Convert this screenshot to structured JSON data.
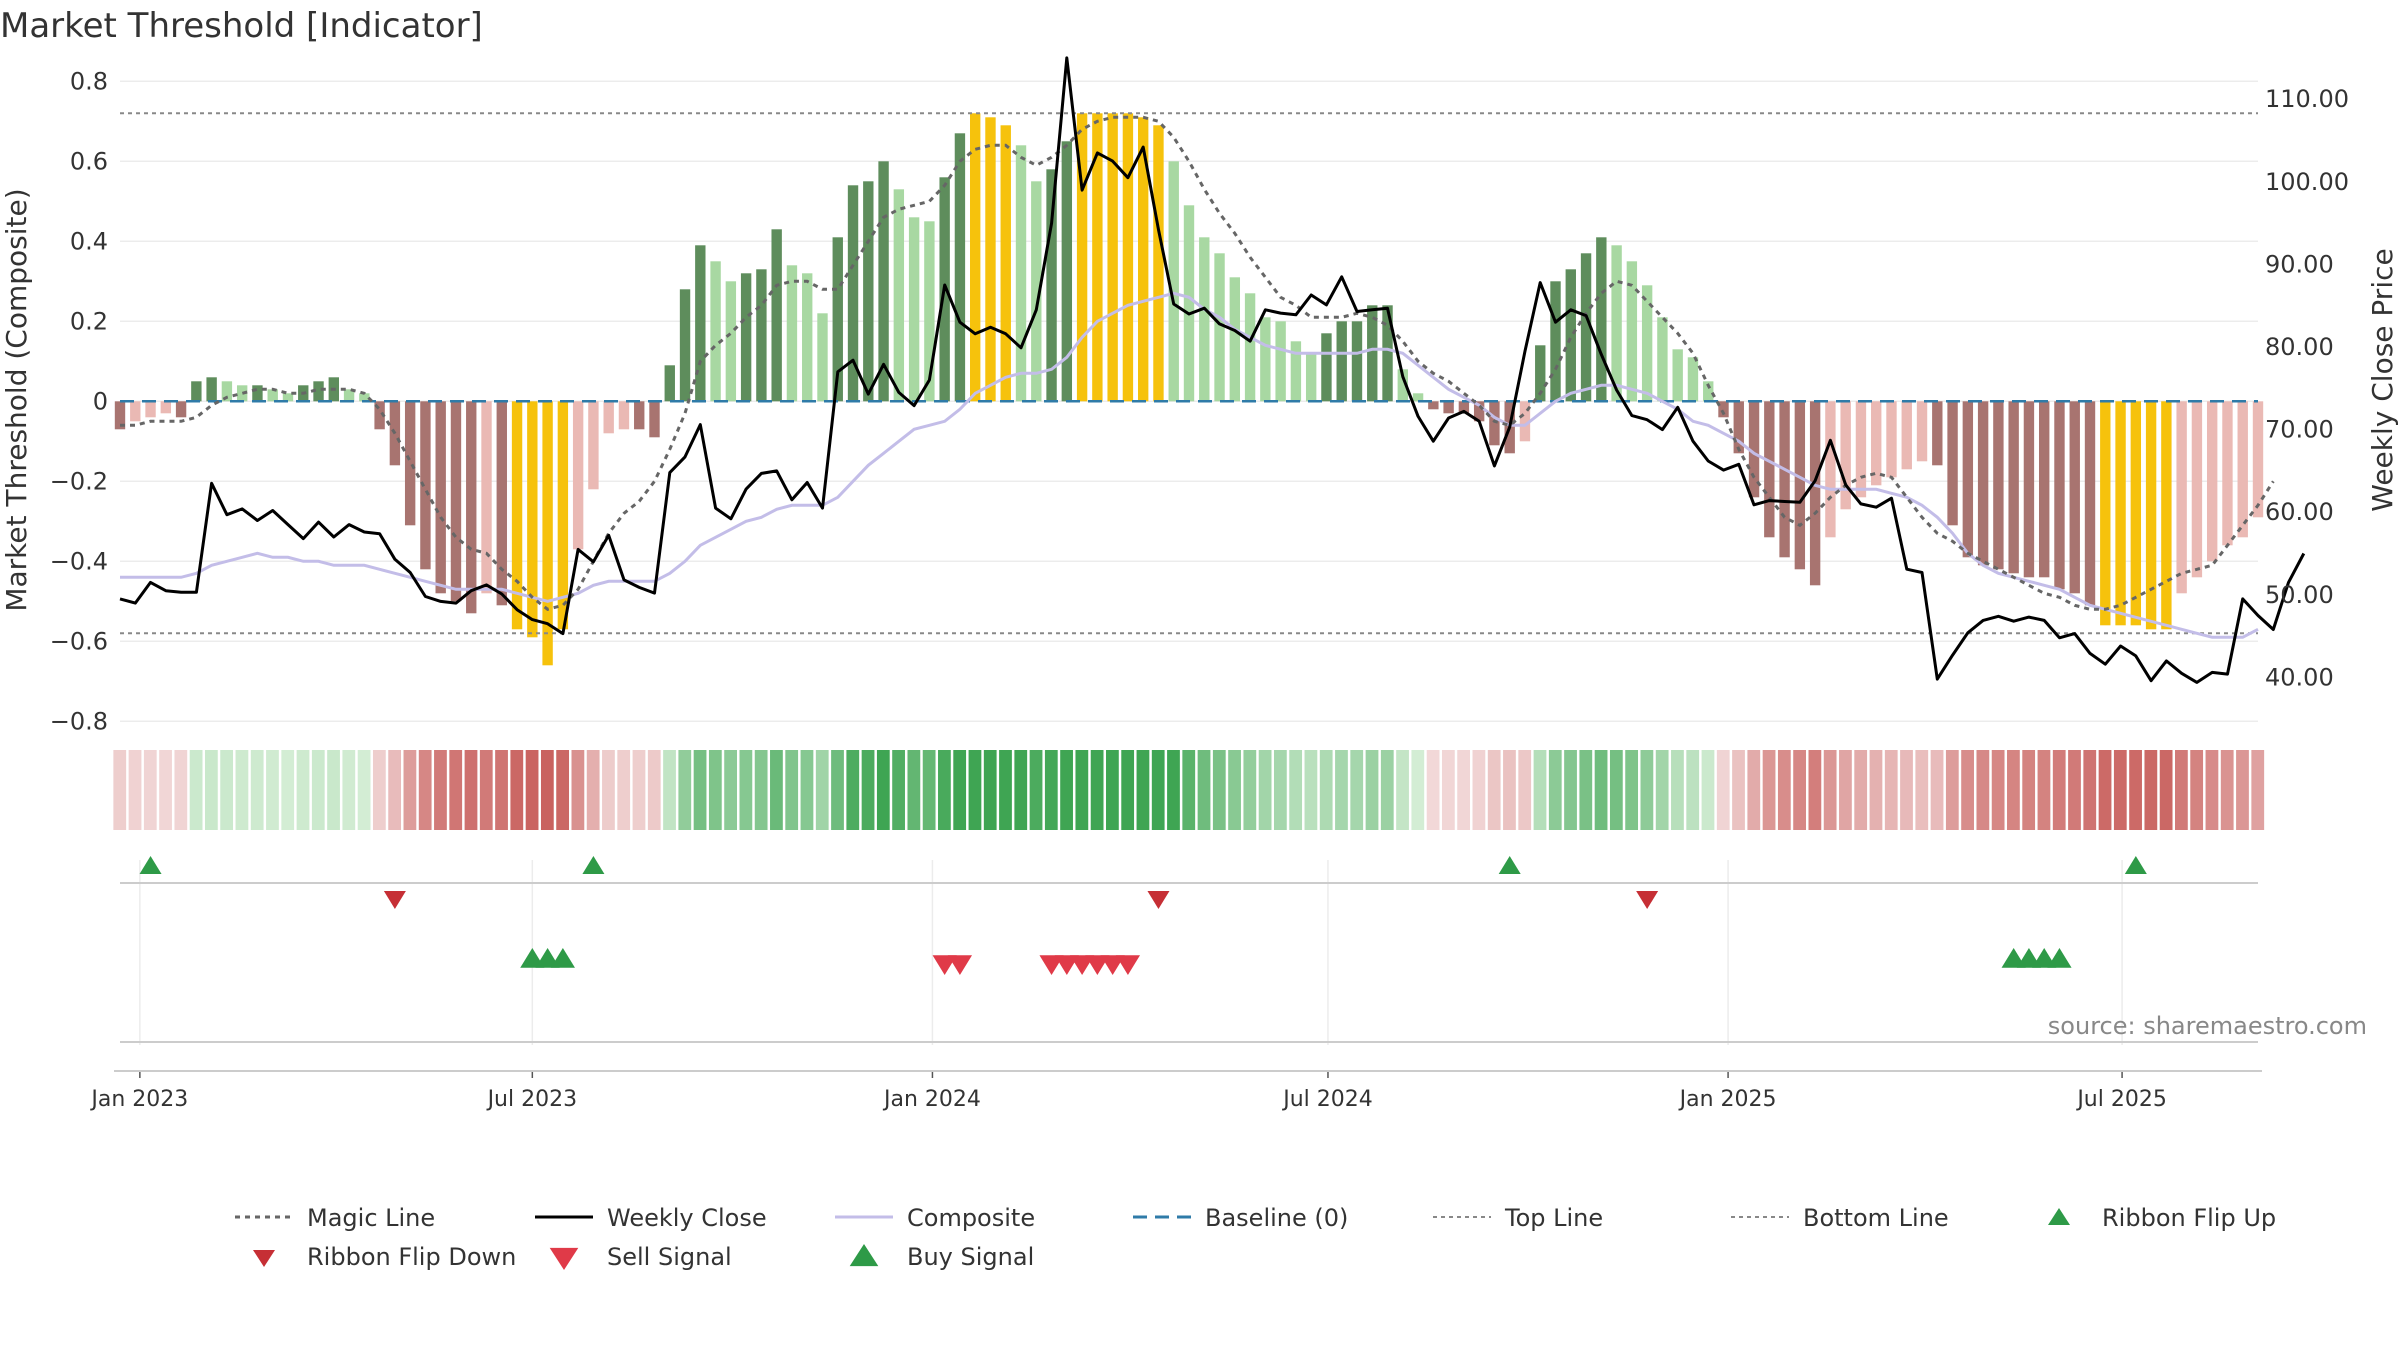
{
  "chart_data": {
    "type": "bar",
    "title": "Market Threshold [Indicator]",
    "ylabel": "Market Threshold (Composite)",
    "y2label": "Weekly Close Price",
    "ylim": [
      -0.8,
      0.8
    ],
    "y2lim": [
      36.0,
      119.0
    ],
    "yticks": [
      "0.8",
      "0.6",
      "0.4",
      "0.2",
      "0",
      "−0.2",
      "−0.4",
      "−0.6",
      "−0.8"
    ],
    "y2ticks": [
      "110.00",
      "100.00",
      "90.00",
      "80.00",
      "70.00",
      "60.00",
      "50.00",
      "40.00"
    ],
    "xticks": [
      "Jan 2023",
      "Jul 2023",
      "Jan 2024",
      "Jul 2024",
      "Jan 2025",
      "Jul 2025"
    ],
    "top_line": 0.72,
    "bottom_line": -0.58,
    "baseline": 0,
    "source": "source: sharemaestro.com",
    "grid": true,
    "legend_position": "bottom",
    "weeks": 141,
    "composite_bars": [
      -0.07,
      -0.05,
      -0.04,
      -0.03,
      -0.04,
      0.05,
      0.06,
      0.05,
      0.04,
      0.04,
      0.03,
      0.02,
      0.04,
      0.05,
      0.06,
      0.03,
      0.02,
      -0.07,
      -0.16,
      -0.31,
      -0.42,
      -0.48,
      -0.5,
      -0.53,
      -0.48,
      -0.51,
      -0.57,
      -0.59,
      -0.66,
      -0.57,
      -0.37,
      -0.22,
      -0.08,
      -0.07,
      -0.07,
      -0.09,
      0.09,
      0.28,
      0.39,
      0.35,
      0.3,
      0.32,
      0.33,
      0.43,
      0.34,
      0.32,
      0.22,
      0.41,
      0.54,
      0.55,
      0.6,
      0.53,
      0.46,
      0.45,
      0.56,
      0.67,
      0.72,
      0.71,
      0.69,
      0.64,
      0.55,
      0.58,
      0.65,
      0.72,
      0.72,
      0.72,
      0.72,
      0.71,
      0.69,
      0.6,
      0.49,
      0.41,
      0.37,
      0.31,
      0.27,
      0.21,
      0.2,
      0.15,
      0.12,
      0.17,
      0.2,
      0.2,
      0.24,
      0.24,
      0.08,
      0.02,
      -0.02,
      -0.03,
      -0.03,
      -0.05,
      -0.11,
      -0.13,
      -0.1,
      0.14,
      0.3,
      0.33,
      0.37,
      0.41,
      0.39,
      0.35,
      0.29,
      0.21,
      0.13,
      0.11,
      0.05,
      -0.04,
      -0.13,
      -0.24,
      -0.34,
      -0.39,
      -0.42,
      -0.46,
      -0.34,
      -0.27,
      -0.24,
      -0.21,
      -0.19,
      -0.17,
      -0.15,
      -0.16,
      -0.31,
      -0.39,
      -0.41,
      -0.42,
      -0.43,
      -0.44,
      -0.44,
      -0.47,
      -0.48,
      -0.51,
      -0.56,
      -0.56,
      -0.56,
      -0.57,
      -0.57,
      -0.48,
      -0.44,
      -0.4,
      -0.36,
      -0.34,
      -0.29
    ],
    "composite_line": [
      -0.44,
      -0.44,
      -0.44,
      -0.44,
      -0.44,
      -0.43,
      -0.41,
      -0.4,
      -0.39,
      -0.38,
      -0.39,
      -0.39,
      -0.4,
      -0.4,
      -0.41,
      -0.41,
      -0.41,
      -0.42,
      -0.43,
      -0.44,
      -0.45,
      -0.46,
      -0.47,
      -0.47,
      -0.47,
      -0.47,
      -0.48,
      -0.49,
      -0.5,
      -0.49,
      -0.48,
      -0.46,
      -0.45,
      -0.45,
      -0.45,
      -0.45,
      -0.43,
      -0.4,
      -0.36,
      -0.34,
      -0.32,
      -0.3,
      -0.29,
      -0.27,
      -0.26,
      -0.26,
      -0.26,
      -0.24,
      -0.2,
      -0.16,
      -0.13,
      -0.1,
      -0.07,
      -0.06,
      -0.05,
      -0.02,
      0.02,
      0.04,
      0.06,
      0.07,
      0.07,
      0.08,
      0.11,
      0.16,
      0.2,
      0.22,
      0.24,
      0.25,
      0.26,
      0.27,
      0.26,
      0.23,
      0.21,
      0.18,
      0.16,
      0.14,
      0.13,
      0.12,
      0.12,
      0.12,
      0.12,
      0.12,
      0.13,
      0.13,
      0.12,
      0.09,
      0.06,
      0.03,
      0.01,
      -0.01,
      -0.04,
      -0.06,
      -0.06,
      -0.03,
      0.0,
      0.02,
      0.03,
      0.04,
      0.04,
      0.03,
      0.02,
      0.0,
      -0.02,
      -0.05,
      -0.06,
      -0.08,
      -0.1,
      -0.13,
      -0.15,
      -0.17,
      -0.19,
      -0.21,
      -0.22,
      -0.22,
      -0.22,
      -0.22,
      -0.23,
      -0.24,
      -0.26,
      -0.29,
      -0.33,
      -0.38,
      -0.41,
      -0.43,
      -0.44,
      -0.45,
      -0.46,
      -0.47,
      -0.49,
      -0.51,
      -0.52,
      -0.53,
      -0.54,
      -0.55,
      -0.56,
      -0.57,
      -0.58,
      -0.59,
      -0.59,
      -0.59,
      -0.57
    ],
    "magic_line": [
      -0.06,
      -0.06,
      -0.05,
      -0.05,
      -0.05,
      -0.04,
      -0.01,
      0.01,
      0.02,
      0.03,
      0.03,
      0.02,
      0.02,
      0.03,
      0.03,
      0.03,
      0.02,
      -0.02,
      -0.08,
      -0.15,
      -0.22,
      -0.29,
      -0.34,
      -0.37,
      -0.38,
      -0.42,
      -0.45,
      -0.49,
      -0.52,
      -0.51,
      -0.47,
      -0.4,
      -0.33,
      -0.28,
      -0.25,
      -0.2,
      -0.12,
      -0.03,
      0.1,
      0.14,
      0.17,
      0.21,
      0.24,
      0.29,
      0.3,
      0.3,
      0.28,
      0.28,
      0.34,
      0.4,
      0.46,
      0.48,
      0.49,
      0.5,
      0.54,
      0.6,
      0.63,
      0.64,
      0.64,
      0.61,
      0.59,
      0.61,
      0.64,
      0.68,
      0.7,
      0.71,
      0.71,
      0.71,
      0.7,
      0.66,
      0.6,
      0.53,
      0.47,
      0.42,
      0.36,
      0.31,
      0.26,
      0.24,
      0.21,
      0.21,
      0.21,
      0.22,
      0.21,
      0.19,
      0.15,
      0.1,
      0.07,
      0.05,
      0.02,
      -0.01,
      -0.05,
      -0.06,
      -0.03,
      0.02,
      0.08,
      0.16,
      0.22,
      0.27,
      0.3,
      0.29,
      0.25,
      0.21,
      0.17,
      0.12,
      0.04,
      -0.03,
      -0.12,
      -0.19,
      -0.24,
      -0.29,
      -0.31,
      -0.28,
      -0.24,
      -0.21,
      -0.19,
      -0.18,
      -0.19,
      -0.24,
      -0.29,
      -0.33,
      -0.35,
      -0.38,
      -0.4,
      -0.42,
      -0.44,
      -0.46,
      -0.48,
      -0.49,
      -0.51,
      -0.52,
      -0.52,
      -0.51,
      -0.49,
      -0.47,
      -0.45,
      -0.43,
      -0.42,
      -0.41,
      -0.36,
      -0.31,
      -0.26,
      -0.2
    ],
    "weekly_close": [
      49.5,
      49.0,
      51.5,
      50.5,
      50.3,
      50.3,
      63.5,
      59.7,
      60.4,
      59.0,
      60.2,
      58.5,
      56.8,
      58.8,
      57.0,
      58.5,
      57.6,
      57.4,
      54.3,
      52.7,
      49.8,
      49.2,
      49.0,
      50.5,
      51.2,
      50.1,
      48.2,
      47.0,
      46.5,
      45.3,
      55.5,
      54.0,
      57.2,
      51.8,
      50.9,
      50.2,
      64.8,
      66.7,
      70.6,
      60.5,
      59.2,
      62.8,
      64.7,
      65.0,
      61.5,
      63.6,
      60.5,
      77.0,
      78.4,
      74.3,
      77.9,
      74.5,
      72.9,
      76.0,
      87.5,
      83.0,
      81.6,
      82.4,
      81.6,
      79.9,
      84.5,
      95.0,
      115.0,
      99.0,
      103.5,
      102.5,
      100.5,
      104.2,
      94.2,
      85.2,
      84.0,
      84.7,
      82.8,
      82.0,
      80.7,
      84.5,
      84.1,
      83.9,
      86.3,
      85.1,
      88.5,
      84.3,
      84.5,
      84.7,
      76.4,
      71.6,
      68.6,
      71.4,
      72.2,
      71.0,
      65.6,
      70.3,
      79.5,
      87.8,
      83.0,
      84.5,
      83.8,
      79.1,
      74.8,
      71.7,
      71.2,
      70.0,
      72.7,
      68.6,
      66.2,
      65.1,
      65.8,
      60.9,
      61.4,
      61.3,
      61.2,
      63.8,
      68.7,
      63.3,
      61.0,
      60.6,
      61.7,
      53.1,
      52.7,
      39.8,
      42.7,
      45.4,
      46.9,
      47.4,
      46.8,
      47.3,
      46.9,
      44.8,
      45.3,
      42.9,
      41.6,
      43.8,
      42.6,
      39.6,
      42.0,
      40.5,
      39.4,
      40.6,
      40.4,
      49.5,
      47.5,
      45.8,
      51.5,
      55.0
    ],
    "bar_colors": {
      "dark_green": "#5e8d5c",
      "light_green": "#a8d8a2",
      "dark_red": "#a87470",
      "light_red": "#eab9b4",
      "extreme": "#f6c20c"
    },
    "series": [
      {
        "name": "Magic Line",
        "color": "#666666",
        "style": "dotted"
      },
      {
        "name": "Weekly Close",
        "color": "#000000",
        "style": "solid"
      },
      {
        "name": "Composite",
        "color": "#c3bde8",
        "style": "solid"
      },
      {
        "name": "Baseline (0)",
        "color": "#2f7ba8",
        "style": "dashed"
      },
      {
        "name": "Top Line",
        "color": "#888888",
        "style": "dotted"
      },
      {
        "name": "Bottom Line",
        "color": "#888888",
        "style": "dotted"
      },
      {
        "name": "Ribbon Flip Up",
        "color": "#2e9a47",
        "marker": "triangle-up"
      },
      {
        "name": "Ribbon Flip Down",
        "color": "#c62f35",
        "marker": "triangle-down"
      },
      {
        "name": "Sell Signal",
        "color": "#e03a48",
        "marker": "triangle-down"
      },
      {
        "name": "Buy Signal",
        "color": "#2e9a47",
        "marker": "triangle-up"
      }
    ],
    "ribbon_flip_up_weeks": [
      2,
      31,
      91,
      132
    ],
    "ribbon_flip_down_weeks": [
      18,
      68,
      100
    ],
    "buy_signal_weeks": [
      27,
      28,
      29,
      124,
      125,
      126,
      127
    ],
    "sell_signal_weeks": [
      54,
      55,
      61,
      62,
      63,
      64,
      65,
      66
    ]
  }
}
